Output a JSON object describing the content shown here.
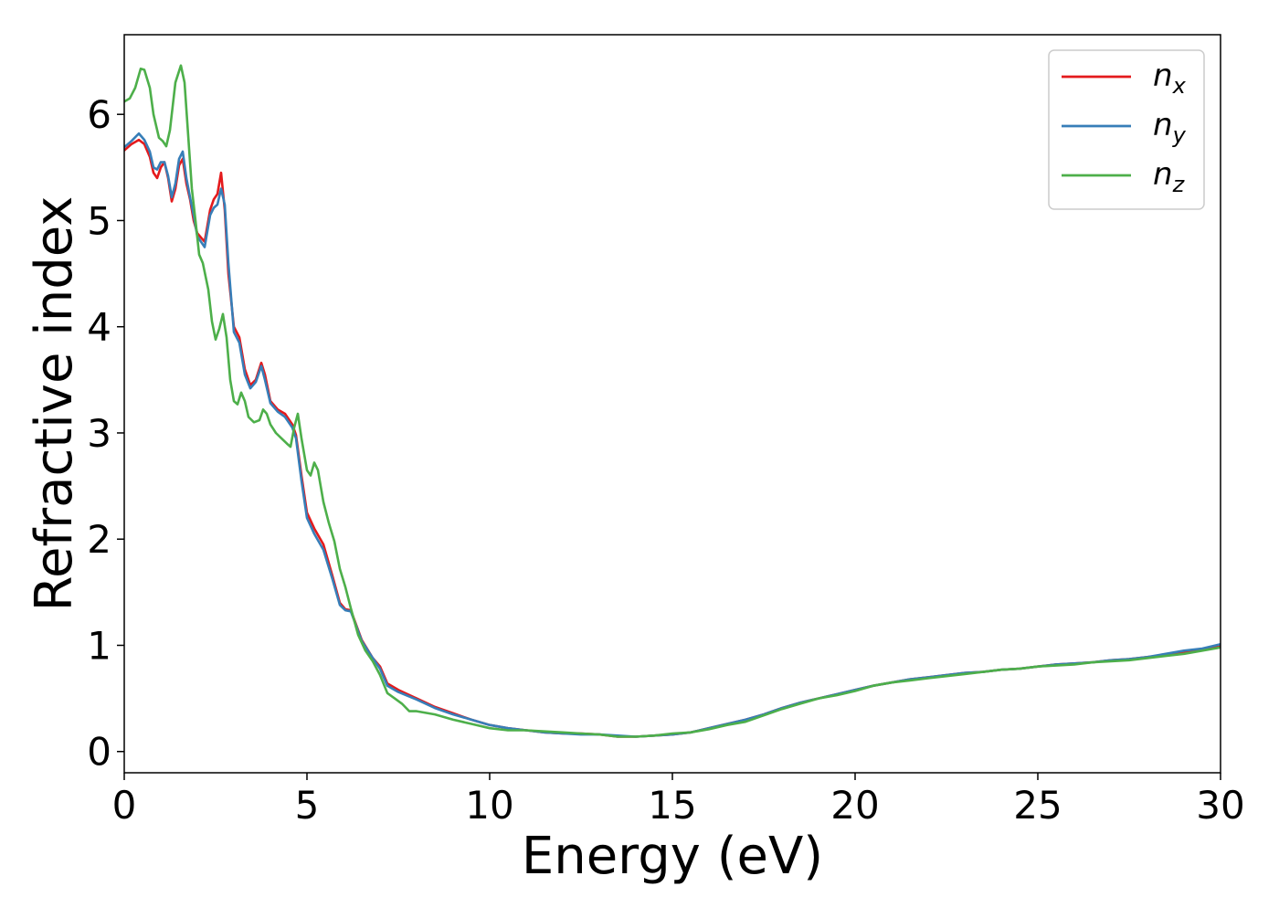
{
  "chart_data": {
    "type": "line",
    "xlabel": "Energy (eV)",
    "ylabel": "Refractive index",
    "xlim": [
      0,
      30
    ],
    "ylim": [
      -0.2,
      6.75
    ],
    "xticks": [
      0,
      5,
      10,
      15,
      20,
      25,
      30
    ],
    "yticks": [
      0,
      1,
      2,
      3,
      4,
      5,
      6
    ],
    "grid": false,
    "legend_position": "top-right",
    "series": [
      {
        "name": "n_x",
        "label_base": "n",
        "label_sub": "x",
        "color": "#e41a1c",
        "points": [
          [
            0,
            5.66
          ],
          [
            0.2,
            5.72
          ],
          [
            0.4,
            5.76
          ],
          [
            0.55,
            5.72
          ],
          [
            0.7,
            5.6
          ],
          [
            0.8,
            5.45
          ],
          [
            0.9,
            5.4
          ],
          [
            1.0,
            5.5
          ],
          [
            1.1,
            5.55
          ],
          [
            1.2,
            5.4
          ],
          [
            1.3,
            5.18
          ],
          [
            1.4,
            5.3
          ],
          [
            1.5,
            5.52
          ],
          [
            1.6,
            5.58
          ],
          [
            1.7,
            5.35
          ],
          [
            1.8,
            5.2
          ],
          [
            1.9,
            5.0
          ],
          [
            2.0,
            4.88
          ],
          [
            2.2,
            4.8
          ],
          [
            2.35,
            5.1
          ],
          [
            2.45,
            5.2
          ],
          [
            2.55,
            5.25
          ],
          [
            2.65,
            5.45
          ],
          [
            2.75,
            5.1
          ],
          [
            2.85,
            4.5
          ],
          [
            3.0,
            4.0
          ],
          [
            3.15,
            3.9
          ],
          [
            3.3,
            3.6
          ],
          [
            3.45,
            3.45
          ],
          [
            3.6,
            3.5
          ],
          [
            3.75,
            3.66
          ],
          [
            3.85,
            3.55
          ],
          [
            4.0,
            3.3
          ],
          [
            4.2,
            3.22
          ],
          [
            4.4,
            3.18
          ],
          [
            4.6,
            3.08
          ],
          [
            4.7,
            2.98
          ],
          [
            4.85,
            2.6
          ],
          [
            5.0,
            2.25
          ],
          [
            5.2,
            2.1
          ],
          [
            5.45,
            1.95
          ],
          [
            5.7,
            1.65
          ],
          [
            5.9,
            1.4
          ],
          [
            6.05,
            1.34
          ],
          [
            6.2,
            1.33
          ],
          [
            6.5,
            1.05
          ],
          [
            6.8,
            0.88
          ],
          [
            7.0,
            0.8
          ],
          [
            7.2,
            0.64
          ],
          [
            7.5,
            0.58
          ],
          [
            8.0,
            0.5
          ],
          [
            8.5,
            0.42
          ],
          [
            9.0,
            0.36
          ],
          [
            9.5,
            0.3
          ],
          [
            10.0,
            0.25
          ],
          [
            10.5,
            0.22
          ],
          [
            11.0,
            0.2
          ],
          [
            11.5,
            0.18
          ],
          [
            12.0,
            0.17
          ],
          [
            12.5,
            0.17
          ],
          [
            13.0,
            0.16
          ],
          [
            13.5,
            0.14
          ],
          [
            14.0,
            0.14
          ],
          [
            14.5,
            0.15
          ],
          [
            15.0,
            0.16
          ],
          [
            15.5,
            0.18
          ],
          [
            16.0,
            0.22
          ],
          [
            16.5,
            0.26
          ],
          [
            17.0,
            0.3
          ],
          [
            17.5,
            0.35
          ],
          [
            18.0,
            0.41
          ],
          [
            18.5,
            0.46
          ],
          [
            19.0,
            0.5
          ],
          [
            19.5,
            0.54
          ],
          [
            20.0,
            0.58
          ],
          [
            20.5,
            0.62
          ],
          [
            21.0,
            0.65
          ],
          [
            21.5,
            0.68
          ],
          [
            22.0,
            0.7
          ],
          [
            22.5,
            0.72
          ],
          [
            23.0,
            0.74
          ],
          [
            23.5,
            0.75
          ],
          [
            24.0,
            0.77
          ],
          [
            24.5,
            0.78
          ],
          [
            25.0,
            0.8
          ],
          [
            25.5,
            0.82
          ],
          [
            26.0,
            0.83
          ],
          [
            26.5,
            0.84
          ],
          [
            27.0,
            0.86
          ],
          [
            27.5,
            0.87
          ],
          [
            28.0,
            0.89
          ],
          [
            28.5,
            0.91
          ],
          [
            29.0,
            0.94
          ],
          [
            29.5,
            0.96
          ],
          [
            30.0,
            1.0
          ]
        ]
      },
      {
        "name": "n_y",
        "label_base": "n",
        "label_sub": "y",
        "color": "#377eb8",
        "points": [
          [
            0,
            5.69
          ],
          [
            0.2,
            5.75
          ],
          [
            0.4,
            5.82
          ],
          [
            0.55,
            5.76
          ],
          [
            0.7,
            5.65
          ],
          [
            0.8,
            5.5
          ],
          [
            0.9,
            5.48
          ],
          [
            1.0,
            5.55
          ],
          [
            1.1,
            5.55
          ],
          [
            1.2,
            5.42
          ],
          [
            1.3,
            5.22
          ],
          [
            1.4,
            5.35
          ],
          [
            1.5,
            5.58
          ],
          [
            1.6,
            5.65
          ],
          [
            1.7,
            5.4
          ],
          [
            1.8,
            5.22
          ],
          [
            1.9,
            5.05
          ],
          [
            2.0,
            4.85
          ],
          [
            2.2,
            4.75
          ],
          [
            2.35,
            5.05
          ],
          [
            2.45,
            5.12
          ],
          [
            2.55,
            5.15
          ],
          [
            2.65,
            5.3
          ],
          [
            2.75,
            5.15
          ],
          [
            2.85,
            4.6
          ],
          [
            3.0,
            3.95
          ],
          [
            3.15,
            3.85
          ],
          [
            3.3,
            3.55
          ],
          [
            3.45,
            3.42
          ],
          [
            3.6,
            3.48
          ],
          [
            3.75,
            3.63
          ],
          [
            3.85,
            3.5
          ],
          [
            4.0,
            3.28
          ],
          [
            4.2,
            3.2
          ],
          [
            4.4,
            3.15
          ],
          [
            4.6,
            3.05
          ],
          [
            4.7,
            2.95
          ],
          [
            4.85,
            2.55
          ],
          [
            5.0,
            2.2
          ],
          [
            5.2,
            2.05
          ],
          [
            5.45,
            1.9
          ],
          [
            5.7,
            1.62
          ],
          [
            5.9,
            1.38
          ],
          [
            6.05,
            1.33
          ],
          [
            6.2,
            1.32
          ],
          [
            6.5,
            1.04
          ],
          [
            6.8,
            0.88
          ],
          [
            7.0,
            0.78
          ],
          [
            7.2,
            0.62
          ],
          [
            7.5,
            0.56
          ],
          [
            8.0,
            0.49
          ],
          [
            8.5,
            0.41
          ],
          [
            9.0,
            0.35
          ],
          [
            9.5,
            0.3
          ],
          [
            10.0,
            0.25
          ],
          [
            10.5,
            0.22
          ],
          [
            11.0,
            0.2
          ],
          [
            11.5,
            0.18
          ],
          [
            12.0,
            0.17
          ],
          [
            12.5,
            0.16
          ],
          [
            13.0,
            0.16
          ],
          [
            13.5,
            0.15
          ],
          [
            14.0,
            0.14
          ],
          [
            14.5,
            0.15
          ],
          [
            15.0,
            0.16
          ],
          [
            15.5,
            0.18
          ],
          [
            16.0,
            0.22
          ],
          [
            16.5,
            0.26
          ],
          [
            17.0,
            0.3
          ],
          [
            17.5,
            0.35
          ],
          [
            18.0,
            0.41
          ],
          [
            18.5,
            0.46
          ],
          [
            19.0,
            0.5
          ],
          [
            19.5,
            0.54
          ],
          [
            20.0,
            0.58
          ],
          [
            20.5,
            0.62
          ],
          [
            21.0,
            0.65
          ],
          [
            21.5,
            0.68
          ],
          [
            22.0,
            0.7
          ],
          [
            22.5,
            0.72
          ],
          [
            23.0,
            0.74
          ],
          [
            23.5,
            0.75
          ],
          [
            24.0,
            0.77
          ],
          [
            24.5,
            0.78
          ],
          [
            25.0,
            0.8
          ],
          [
            25.5,
            0.82
          ],
          [
            26.0,
            0.83
          ],
          [
            26.5,
            0.84
          ],
          [
            27.0,
            0.86
          ],
          [
            27.5,
            0.87
          ],
          [
            28.0,
            0.89
          ],
          [
            28.5,
            0.92
          ],
          [
            29.0,
            0.95
          ],
          [
            29.5,
            0.97
          ],
          [
            30.0,
            1.01
          ]
        ]
      },
      {
        "name": "n_z",
        "label_base": "n",
        "label_sub": "z",
        "color": "#4daf4a",
        "points": [
          [
            0,
            6.12
          ],
          [
            0.15,
            6.15
          ],
          [
            0.3,
            6.25
          ],
          [
            0.45,
            6.43
          ],
          [
            0.55,
            6.42
          ],
          [
            0.7,
            6.25
          ],
          [
            0.8,
            6.0
          ],
          [
            0.95,
            5.78
          ],
          [
            1.05,
            5.75
          ],
          [
            1.15,
            5.7
          ],
          [
            1.25,
            5.85
          ],
          [
            1.4,
            6.3
          ],
          [
            1.55,
            6.46
          ],
          [
            1.65,
            6.3
          ],
          [
            1.75,
            5.8
          ],
          [
            1.85,
            5.3
          ],
          [
            1.95,
            5.0
          ],
          [
            2.05,
            4.68
          ],
          [
            2.15,
            4.6
          ],
          [
            2.3,
            4.35
          ],
          [
            2.4,
            4.05
          ],
          [
            2.5,
            3.88
          ],
          [
            2.6,
            3.98
          ],
          [
            2.7,
            4.12
          ],
          [
            2.8,
            3.9
          ],
          [
            2.9,
            3.5
          ],
          [
            3.0,
            3.3
          ],
          [
            3.1,
            3.27
          ],
          [
            3.2,
            3.38
          ],
          [
            3.3,
            3.3
          ],
          [
            3.4,
            3.15
          ],
          [
            3.55,
            3.1
          ],
          [
            3.7,
            3.12
          ],
          [
            3.8,
            3.22
          ],
          [
            3.9,
            3.18
          ],
          [
            4.0,
            3.08
          ],
          [
            4.15,
            3.0
          ],
          [
            4.3,
            2.95
          ],
          [
            4.45,
            2.9
          ],
          [
            4.55,
            2.87
          ],
          [
            4.65,
            3.05
          ],
          [
            4.75,
            3.18
          ],
          [
            4.85,
            2.95
          ],
          [
            5.0,
            2.65
          ],
          [
            5.1,
            2.6
          ],
          [
            5.2,
            2.72
          ],
          [
            5.3,
            2.65
          ],
          [
            5.45,
            2.35
          ],
          [
            5.6,
            2.15
          ],
          [
            5.75,
            1.98
          ],
          [
            5.9,
            1.72
          ],
          [
            6.05,
            1.55
          ],
          [
            6.2,
            1.35
          ],
          [
            6.4,
            1.1
          ],
          [
            6.6,
            0.95
          ],
          [
            6.8,
            0.85
          ],
          [
            7.0,
            0.72
          ],
          [
            7.2,
            0.55
          ],
          [
            7.4,
            0.5
          ],
          [
            7.6,
            0.45
          ],
          [
            7.8,
            0.38
          ],
          [
            8.0,
            0.38
          ],
          [
            8.5,
            0.35
          ],
          [
            9.0,
            0.3
          ],
          [
            9.5,
            0.26
          ],
          [
            10.0,
            0.22
          ],
          [
            10.5,
            0.2
          ],
          [
            11.0,
            0.2
          ],
          [
            11.5,
            0.19
          ],
          [
            12.0,
            0.18
          ],
          [
            12.5,
            0.17
          ],
          [
            13.0,
            0.16
          ],
          [
            13.5,
            0.14
          ],
          [
            14.0,
            0.14
          ],
          [
            14.5,
            0.15
          ],
          [
            15.0,
            0.17
          ],
          [
            15.5,
            0.18
          ],
          [
            16.0,
            0.21
          ],
          [
            16.5,
            0.25
          ],
          [
            17.0,
            0.28
          ],
          [
            17.5,
            0.34
          ],
          [
            18.0,
            0.4
          ],
          [
            18.5,
            0.45
          ],
          [
            19.0,
            0.5
          ],
          [
            19.5,
            0.53
          ],
          [
            20.0,
            0.57
          ],
          [
            20.5,
            0.62
          ],
          [
            21.0,
            0.65
          ],
          [
            21.5,
            0.67
          ],
          [
            22.0,
            0.69
          ],
          [
            22.5,
            0.71
          ],
          [
            23.0,
            0.73
          ],
          [
            23.5,
            0.75
          ],
          [
            24.0,
            0.77
          ],
          [
            24.5,
            0.78
          ],
          [
            25.0,
            0.8
          ],
          [
            25.5,
            0.81
          ],
          [
            26.0,
            0.82
          ],
          [
            26.5,
            0.84
          ],
          [
            27.0,
            0.85
          ],
          [
            27.5,
            0.86
          ],
          [
            28.0,
            0.88
          ],
          [
            28.5,
            0.9
          ],
          [
            29.0,
            0.92
          ],
          [
            29.5,
            0.95
          ],
          [
            30.0,
            0.98
          ]
        ]
      }
    ]
  }
}
